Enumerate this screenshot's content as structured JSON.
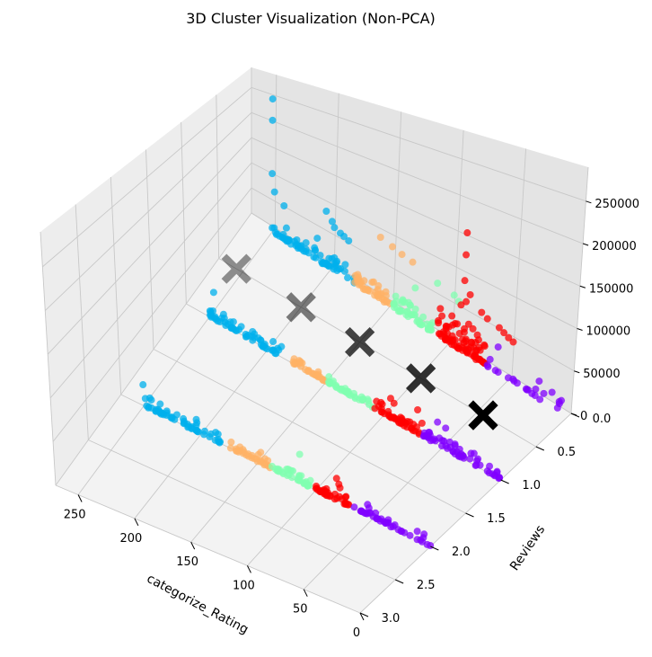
{
  "chart_data": {
    "type": "scatter",
    "projection": "3d",
    "title": "3D Cluster Visualization (Non-PCA)",
    "xlabel": "categorize_Rating",
    "ylabel": "Reviews",
    "zlabel": "",
    "x_ticks": [
      "250",
      "200",
      "150",
      "100",
      "50",
      "0"
    ],
    "y_ticks": [
      "0.0",
      "0.5",
      "1.0",
      "1.5",
      "2.0",
      "2.5",
      "3.0"
    ],
    "z_ticks": [
      "0",
      "50000",
      "100000",
      "150000",
      "200000",
      "250000"
    ],
    "xlim": [
      0,
      270
    ],
    "ylim": [
      0,
      3
    ],
    "zlim": [
      0,
      290000
    ],
    "grid": true,
    "colors": {
      "c0": "#00b0ec",
      "c1": "#ffb266",
      "c2": "#80ffb0",
      "c3": "#ff0000",
      "c4": "#8000ff"
    },
    "centroid_color": "#000000",
    "series": [
      {
        "color_key": "c0",
        "rows": [
          {
            "y": 0,
            "x_from": 180,
            "x_to": 250,
            "n": 70,
            "base": 3000,
            "spread": 22000,
            "extra": [
              [
                250,
                250000
              ],
              [
                250,
                210000
              ],
              [
                250,
                110000
              ],
              [
                248,
                78000
              ],
              [
                240,
                62000
              ],
              [
                212,
                38000
              ],
              [
                205,
                92000
              ],
              [
                200,
                80000
              ],
              [
                198,
                72000
              ],
              [
                193,
                68000
              ],
              [
                190,
                66000
              ],
              [
                186,
                63000
              ]
            ]
          },
          {
            "y": 1,
            "x_from": 188,
            "x_to": 250,
            "n": 55,
            "base": 2000,
            "spread": 16000,
            "extra": [
              [
                246,
                42000
              ],
              [
                232,
                10000
              ]
            ]
          },
          {
            "y": 2,
            "x_from": 183,
            "x_to": 250,
            "n": 55,
            "base": 2000,
            "spread": 14000,
            "extra": [
              [
                250,
                28000
              ],
              [
                204,
                16000
              ]
            ]
          }
        ]
      },
      {
        "color_key": "c1",
        "rows": [
          {
            "y": 0,
            "x_from": 150,
            "x_to": 180,
            "n": 40,
            "base": 3000,
            "spread": 20000,
            "extra": [
              [
                160,
                95000
              ],
              [
                150,
                90000
              ],
              [
                142,
                86000
              ],
              [
                133,
                83000
              ]
            ]
          },
          {
            "y": 1,
            "x_from": 150,
            "x_to": 180,
            "n": 30,
            "base": 2000,
            "spread": 9000,
            "extra": []
          },
          {
            "y": 2,
            "x_from": 140,
            "x_to": 180,
            "n": 30,
            "base": 2000,
            "spread": 9000,
            "extra": [
              [
                148,
                14000
              ]
            ]
          }
        ]
      },
      {
        "color_key": "c2",
        "rows": [
          {
            "y": 0,
            "x_from": 114,
            "x_to": 148,
            "n": 45,
            "base": 3000,
            "spread": 22000,
            "extra": [
              [
                130,
                48000
              ],
              [
                112,
                72000
              ],
              [
                98,
                68000
              ],
              [
                94,
                63000
              ]
            ]
          },
          {
            "y": 1,
            "x_from": 110,
            "x_to": 150,
            "n": 35,
            "base": 2000,
            "spread": 10000,
            "extra": []
          },
          {
            "y": 2,
            "x_from": 104,
            "x_to": 140,
            "n": 35,
            "base": 2000,
            "spread": 10000,
            "extra": [
              [
                114,
                36000
              ]
            ]
          }
        ]
      },
      {
        "color_key": "c3",
        "rows": [
          {
            "y": 0,
            "x_from": 70,
            "x_to": 110,
            "n": 80,
            "base": 3000,
            "spread": 40000,
            "extra": [
              [
                90,
                160000
              ],
              [
                90,
                130000
              ],
              [
                90,
                95000
              ],
              [
                85,
                80000
              ],
              [
                88,
                68000
              ],
              [
                92,
                60000
              ],
              [
                75,
                65000
              ],
              [
                70,
                61000
              ],
              [
                60,
                58000
              ],
              [
                56,
                55000
              ],
              [
                52,
                52000
              ],
              [
                48,
                50000
              ]
            ]
          },
          {
            "y": 1,
            "x_from": 70,
            "x_to": 110,
            "n": 40,
            "base": 2000,
            "spread": 12000,
            "extra": [
              [
                95,
                26000
              ],
              [
                92,
                22000
              ],
              [
                72,
                30000
              ],
              [
                68,
                16000
              ]
            ]
          },
          {
            "y": 2,
            "x_from": 70,
            "x_to": 100,
            "n": 35,
            "base": 2000,
            "spread": 10000,
            "extra": [
              [
                82,
                28000
              ],
              [
                80,
                22000
              ],
              [
                79,
                18000
              ]
            ]
          }
        ]
      },
      {
        "color_key": "c4",
        "rows": [
          {
            "y": 0,
            "x_from": 0,
            "x_to": 70,
            "n": 20,
            "base": 3000,
            "spread": 12000,
            "extra": [
              [
                60,
                33000
              ],
              [
                25,
                21000
              ],
              [
                14,
                17000
              ],
              [
                6,
                14000
              ]
            ]
          },
          {
            "y": 1,
            "x_from": 0,
            "x_to": 70,
            "n": 55,
            "base": 2000,
            "spread": 14000,
            "extra": [
              [
                55,
                28000
              ],
              [
                48,
                26000
              ]
            ]
          },
          {
            "y": 2,
            "x_from": 0,
            "x_to": 68,
            "n": 40,
            "base": 2000,
            "spread": 10000,
            "extra": [
              [
                55,
                14000
              ]
            ]
          }
        ]
      }
    ],
    "centroids": [
      {
        "x": 255,
        "y": 0.5,
        "z": 0,
        "opacity": 0.42
      },
      {
        "x": 200,
        "y": 0.5,
        "z": 0,
        "opacity": 0.5
      },
      {
        "x": 150,
        "y": 0.5,
        "z": 0,
        "opacity": 0.72
      },
      {
        "x": 98,
        "y": 0.5,
        "z": 0,
        "opacity": 0.8
      },
      {
        "x": 45,
        "y": 0.5,
        "z": 0,
        "opacity": 1.0
      }
    ]
  }
}
